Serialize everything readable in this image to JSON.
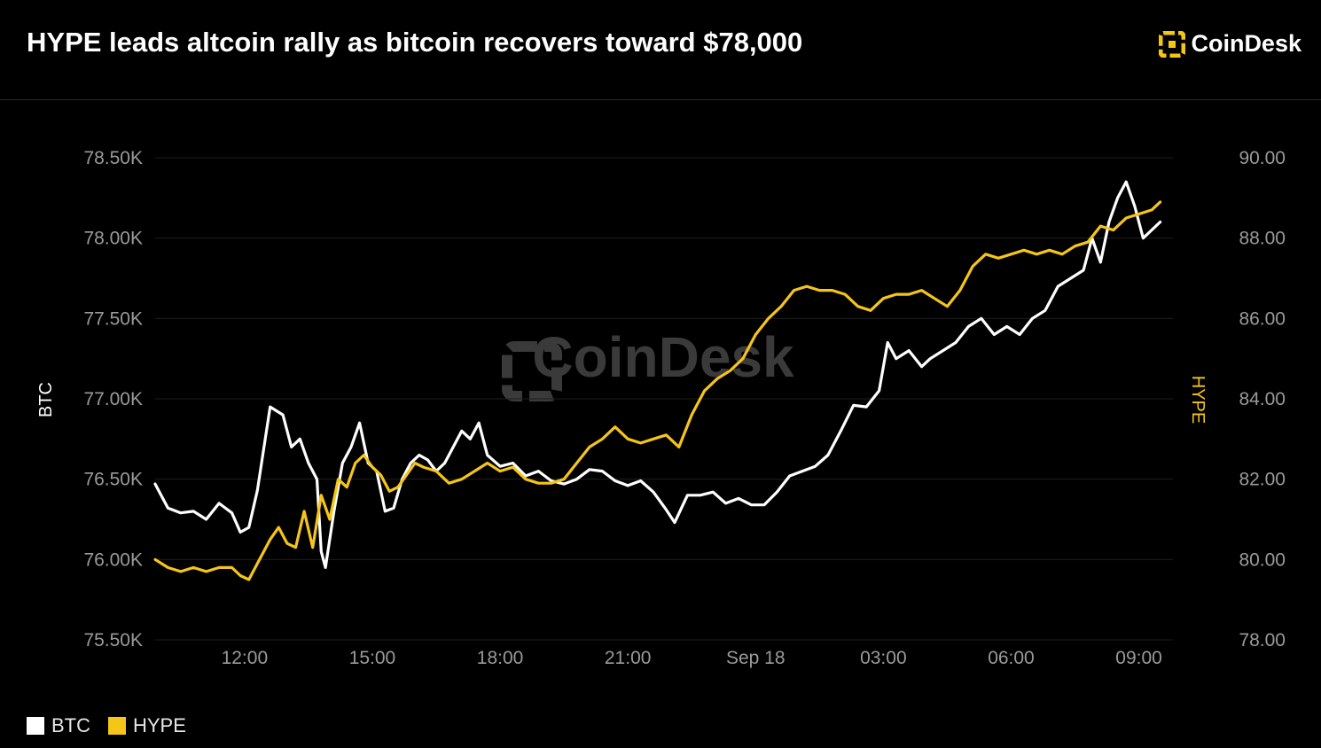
{
  "header": {
    "title": "HYPE leads altcoin rally as bitcoin recovers toward $78,000",
    "brand": "CoinDesk",
    "brand_icon": "coindesk-logo-icon"
  },
  "watermark": "CoinDesk",
  "colors": {
    "background": "#000000",
    "btc": "#ffffff",
    "hype": "#f5c518",
    "grid": "#1e1e1e",
    "tick_text": "#9a9a9a"
  },
  "legend": [
    {
      "label": "BTC",
      "color": "#ffffff"
    },
    {
      "label": "HYPE",
      "color": "#f5c518"
    }
  ],
  "chart_data": {
    "type": "line",
    "title": "HYPE leads altcoin rally as bitcoin recovers toward $78,000",
    "x_ticks": [
      {
        "label": "12:00",
        "h": 12
      },
      {
        "label": "15:00",
        "h": 15
      },
      {
        "label": "18:00",
        "h": 18
      },
      {
        "label": "21:00",
        "h": 21
      },
      {
        "label": "Sep 18",
        "h": 24
      },
      {
        "label": "03:00",
        "h": 27
      },
      {
        "label": "06:00",
        "h": 30
      },
      {
        "label": "09:00",
        "h": 33
      }
    ],
    "xlim": [
      9.9,
      33.8
    ],
    "y_left": {
      "label": "BTC",
      "lim": [
        75500,
        78500
      ],
      "ticks": [
        "75.50K",
        "76.00K",
        "76.50K",
        "77.00K",
        "77.50K",
        "78.00K",
        "78.50K"
      ],
      "tick_values": [
        75500,
        76000,
        76500,
        77000,
        77500,
        78000,
        78500
      ]
    },
    "y_right": {
      "label": "HYPE",
      "lim": [
        78,
        90
      ],
      "ticks": [
        "78.00",
        "80.00",
        "82.00",
        "84.00",
        "86.00",
        "88.00",
        "90.00"
      ],
      "tick_values": [
        78,
        80,
        82,
        84,
        86,
        88,
        90
      ]
    },
    "grid": true,
    "legend_position": "bottom-left",
    "series": [
      {
        "name": "BTC",
        "axis": "left",
        "color": "#ffffff",
        "points": [
          [
            9.9,
            76470
          ],
          [
            10.2,
            76320
          ],
          [
            10.5,
            76290
          ],
          [
            10.8,
            76300
          ],
          [
            11.1,
            76250
          ],
          [
            11.4,
            76350
          ],
          [
            11.7,
            76290
          ],
          [
            11.9,
            76170
          ],
          [
            12.1,
            76200
          ],
          [
            12.3,
            76430
          ],
          [
            12.6,
            76950
          ],
          [
            12.9,
            76900
          ],
          [
            13.1,
            76700
          ],
          [
            13.3,
            76750
          ],
          [
            13.5,
            76600
          ],
          [
            13.7,
            76500
          ],
          [
            13.8,
            76050
          ],
          [
            13.9,
            75950
          ],
          [
            14.1,
            76300
          ],
          [
            14.3,
            76600
          ],
          [
            14.5,
            76700
          ],
          [
            14.7,
            76850
          ],
          [
            14.9,
            76600
          ],
          [
            15.1,
            76550
          ],
          [
            15.3,
            76300
          ],
          [
            15.5,
            76320
          ],
          [
            15.7,
            76500
          ],
          [
            15.9,
            76600
          ],
          [
            16.1,
            76650
          ],
          [
            16.3,
            76620
          ],
          [
            16.5,
            76550
          ],
          [
            16.7,
            76600
          ],
          [
            16.9,
            76700
          ],
          [
            17.1,
            76800
          ],
          [
            17.3,
            76750
          ],
          [
            17.5,
            76850
          ],
          [
            17.7,
            76650
          ],
          [
            18.0,
            76580
          ],
          [
            18.3,
            76600
          ],
          [
            18.6,
            76520
          ],
          [
            18.9,
            76550
          ],
          [
            19.2,
            76490
          ],
          [
            19.5,
            76470
          ],
          [
            19.8,
            76500
          ],
          [
            20.1,
            76560
          ],
          [
            20.4,
            76550
          ],
          [
            20.7,
            76490
          ],
          [
            21.0,
            76460
          ],
          [
            21.3,
            76490
          ],
          [
            21.6,
            76420
          ],
          [
            21.9,
            76310
          ],
          [
            22.1,
            76230
          ],
          [
            22.4,
            76400
          ],
          [
            22.7,
            76400
          ],
          [
            23.0,
            76420
          ],
          [
            23.3,
            76350
          ],
          [
            23.6,
            76380
          ],
          [
            23.9,
            76340
          ],
          [
            24.2,
            76340
          ],
          [
            24.5,
            76420
          ],
          [
            24.8,
            76520
          ],
          [
            25.1,
            76550
          ],
          [
            25.4,
            76580
          ],
          [
            25.7,
            76650
          ],
          [
            26.0,
            76800
          ],
          [
            26.3,
            76960
          ],
          [
            26.6,
            76950
          ],
          [
            26.9,
            77050
          ],
          [
            27.1,
            77350
          ],
          [
            27.3,
            77250
          ],
          [
            27.6,
            77300
          ],
          [
            27.9,
            77200
          ],
          [
            28.1,
            77250
          ],
          [
            28.4,
            77300
          ],
          [
            28.7,
            77350
          ],
          [
            29.0,
            77450
          ],
          [
            29.3,
            77500
          ],
          [
            29.6,
            77400
          ],
          [
            29.9,
            77450
          ],
          [
            30.2,
            77400
          ],
          [
            30.5,
            77500
          ],
          [
            30.8,
            77550
          ],
          [
            31.1,
            77700
          ],
          [
            31.4,
            77750
          ],
          [
            31.7,
            77800
          ],
          [
            31.9,
            78000
          ],
          [
            32.1,
            77850
          ],
          [
            32.3,
            78100
          ],
          [
            32.5,
            78250
          ],
          [
            32.7,
            78350
          ],
          [
            32.9,
            78200
          ],
          [
            33.1,
            78000
          ],
          [
            33.3,
            78050
          ],
          [
            33.5,
            78100
          ]
        ]
      },
      {
        "name": "HYPE",
        "axis": "right",
        "color": "#f5c518",
        "points": [
          [
            9.9,
            80.0
          ],
          [
            10.2,
            79.8
          ],
          [
            10.5,
            79.7
          ],
          [
            10.8,
            79.8
          ],
          [
            11.1,
            79.7
          ],
          [
            11.4,
            79.8
          ],
          [
            11.7,
            79.8
          ],
          [
            11.9,
            79.6
          ],
          [
            12.1,
            79.5
          ],
          [
            12.3,
            79.9
          ],
          [
            12.6,
            80.5
          ],
          [
            12.8,
            80.8
          ],
          [
            13.0,
            80.4
          ],
          [
            13.2,
            80.3
          ],
          [
            13.4,
            81.2
          ],
          [
            13.6,
            80.3
          ],
          [
            13.8,
            81.6
          ],
          [
            14.0,
            81.0
          ],
          [
            14.2,
            82.0
          ],
          [
            14.4,
            81.8
          ],
          [
            14.6,
            82.4
          ],
          [
            14.8,
            82.6
          ],
          [
            15.0,
            82.3
          ],
          [
            15.2,
            82.1
          ],
          [
            15.4,
            81.7
          ],
          [
            15.6,
            81.8
          ],
          [
            15.8,
            82.1
          ],
          [
            16.0,
            82.4
          ],
          [
            16.2,
            82.3
          ],
          [
            16.5,
            82.2
          ],
          [
            16.8,
            81.9
          ],
          [
            17.1,
            82.0
          ],
          [
            17.4,
            82.2
          ],
          [
            17.7,
            82.4
          ],
          [
            18.0,
            82.2
          ],
          [
            18.3,
            82.3
          ],
          [
            18.6,
            82.0
          ],
          [
            18.9,
            81.9
          ],
          [
            19.2,
            81.9
          ],
          [
            19.5,
            82.0
          ],
          [
            19.8,
            82.4
          ],
          [
            20.1,
            82.8
          ],
          [
            20.4,
            83.0
          ],
          [
            20.7,
            83.3
          ],
          [
            21.0,
            83.0
          ],
          [
            21.3,
            82.9
          ],
          [
            21.6,
            83.0
          ],
          [
            21.9,
            83.1
          ],
          [
            22.2,
            82.8
          ],
          [
            22.5,
            83.6
          ],
          [
            22.8,
            84.2
          ],
          [
            23.1,
            84.5
          ],
          [
            23.4,
            84.7
          ],
          [
            23.7,
            85.0
          ],
          [
            24.0,
            85.6
          ],
          [
            24.3,
            86.0
          ],
          [
            24.6,
            86.3
          ],
          [
            24.9,
            86.7
          ],
          [
            25.2,
            86.8
          ],
          [
            25.5,
            86.7
          ],
          [
            25.8,
            86.7
          ],
          [
            26.1,
            86.6
          ],
          [
            26.4,
            86.3
          ],
          [
            26.7,
            86.2
          ],
          [
            27.0,
            86.5
          ],
          [
            27.3,
            86.6
          ],
          [
            27.6,
            86.6
          ],
          [
            27.9,
            86.7
          ],
          [
            28.2,
            86.5
          ],
          [
            28.5,
            86.3
          ],
          [
            28.8,
            86.7
          ],
          [
            29.1,
            87.3
          ],
          [
            29.4,
            87.6
          ],
          [
            29.7,
            87.5
          ],
          [
            30.0,
            87.6
          ],
          [
            30.3,
            87.7
          ],
          [
            30.6,
            87.6
          ],
          [
            30.9,
            87.7
          ],
          [
            31.2,
            87.6
          ],
          [
            31.5,
            87.8
          ],
          [
            31.8,
            87.9
          ],
          [
            32.1,
            88.3
          ],
          [
            32.4,
            88.2
          ],
          [
            32.7,
            88.5
          ],
          [
            33.0,
            88.6
          ],
          [
            33.3,
            88.7
          ],
          [
            33.5,
            88.9
          ]
        ]
      }
    ]
  }
}
